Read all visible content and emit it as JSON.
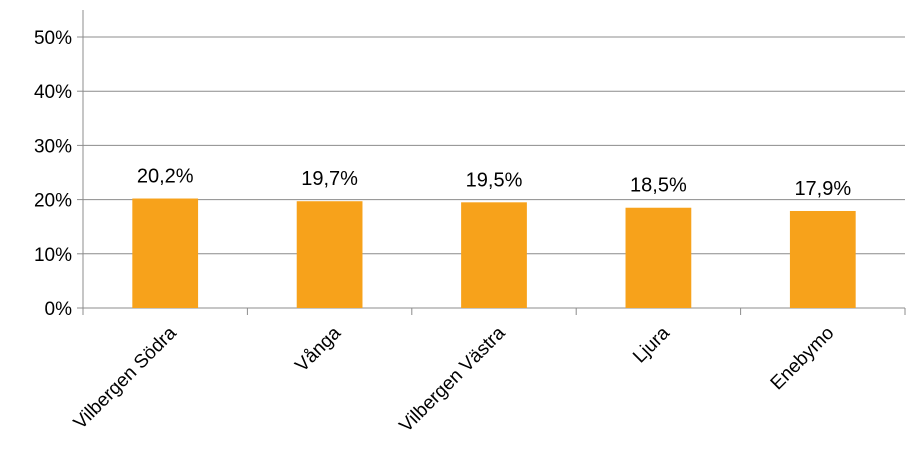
{
  "chart_data": {
    "type": "bar",
    "title": "",
    "xlabel": "",
    "ylabel": "",
    "categories": [
      "Vilbergen Södra",
      "Vånga",
      "Vilbergen Västra",
      "Ljura",
      "Enebymo"
    ],
    "values": [
      20.2,
      19.7,
      19.5,
      18.5,
      17.9
    ],
    "data_labels": [
      "20,2%",
      "19,7%",
      "19,5%",
      "18,5%",
      "17,9%"
    ],
    "ylim": [
      0,
      50
    ],
    "y_ticks": [
      0,
      10,
      20,
      30,
      40,
      50
    ],
    "y_tick_labels": [
      "0%",
      "10%",
      "20%",
      "30%",
      "40%",
      "50%"
    ],
    "grid": true,
    "legend": "none",
    "colors": {
      "bar": "#F7A21B",
      "grid": "#8C8C8C",
      "axis": "#8C8C8C",
      "text": "#000000"
    }
  }
}
